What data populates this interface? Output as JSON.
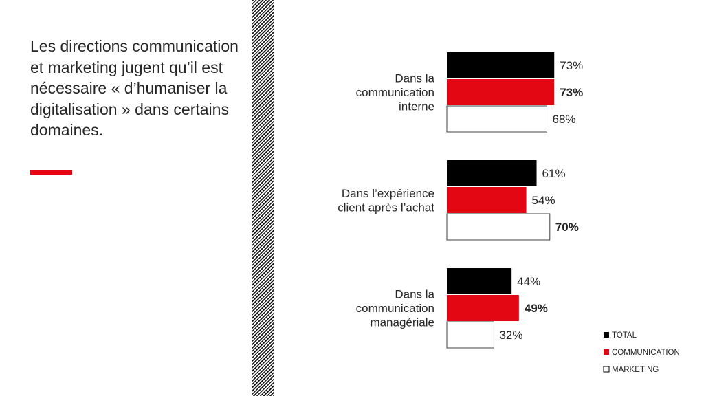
{
  "headline": "Les directions communication et marketing jugent qu’il est nécessaire « d’humaniser la digitalisation » dans certains domaines.",
  "colors": {
    "accent": "#e30613",
    "total": "#000000",
    "communication": "#e30613",
    "marketing": "#ffffff",
    "text": "#262626"
  },
  "chart_data": {
    "type": "bar",
    "orientation": "horizontal",
    "categories": [
      [
        "Dans la",
        "communication",
        "interne"
      ],
      [
        "Dans l’expérience",
        "client après l’achat"
      ],
      [
        "Dans la",
        "communication",
        "managériale"
      ]
    ],
    "series": [
      {
        "name": "TOTAL",
        "color": "#000000",
        "values": [
          73,
          61,
          44
        ],
        "labels": [
          "73%",
          "61%",
          "44%"
        ]
      },
      {
        "name": "COMMUNICATION",
        "color": "#e30613",
        "values": [
          73,
          54,
          49
        ],
        "labels": [
          "73%",
          "54%",
          "49%"
        ]
      },
      {
        "name": "MARKETING",
        "color": "#ffffff",
        "values": [
          68,
          70,
          32
        ],
        "labels": [
          "68%",
          "70%",
          "32%"
        ]
      }
    ],
    "bold_labels": [
      [
        false,
        true,
        false
      ],
      [
        false,
        false,
        true
      ],
      [
        false,
        true,
        false
      ]
    ],
    "xlim": [
      0,
      100
    ],
    "grid": false,
    "legend": "bottom-right"
  }
}
